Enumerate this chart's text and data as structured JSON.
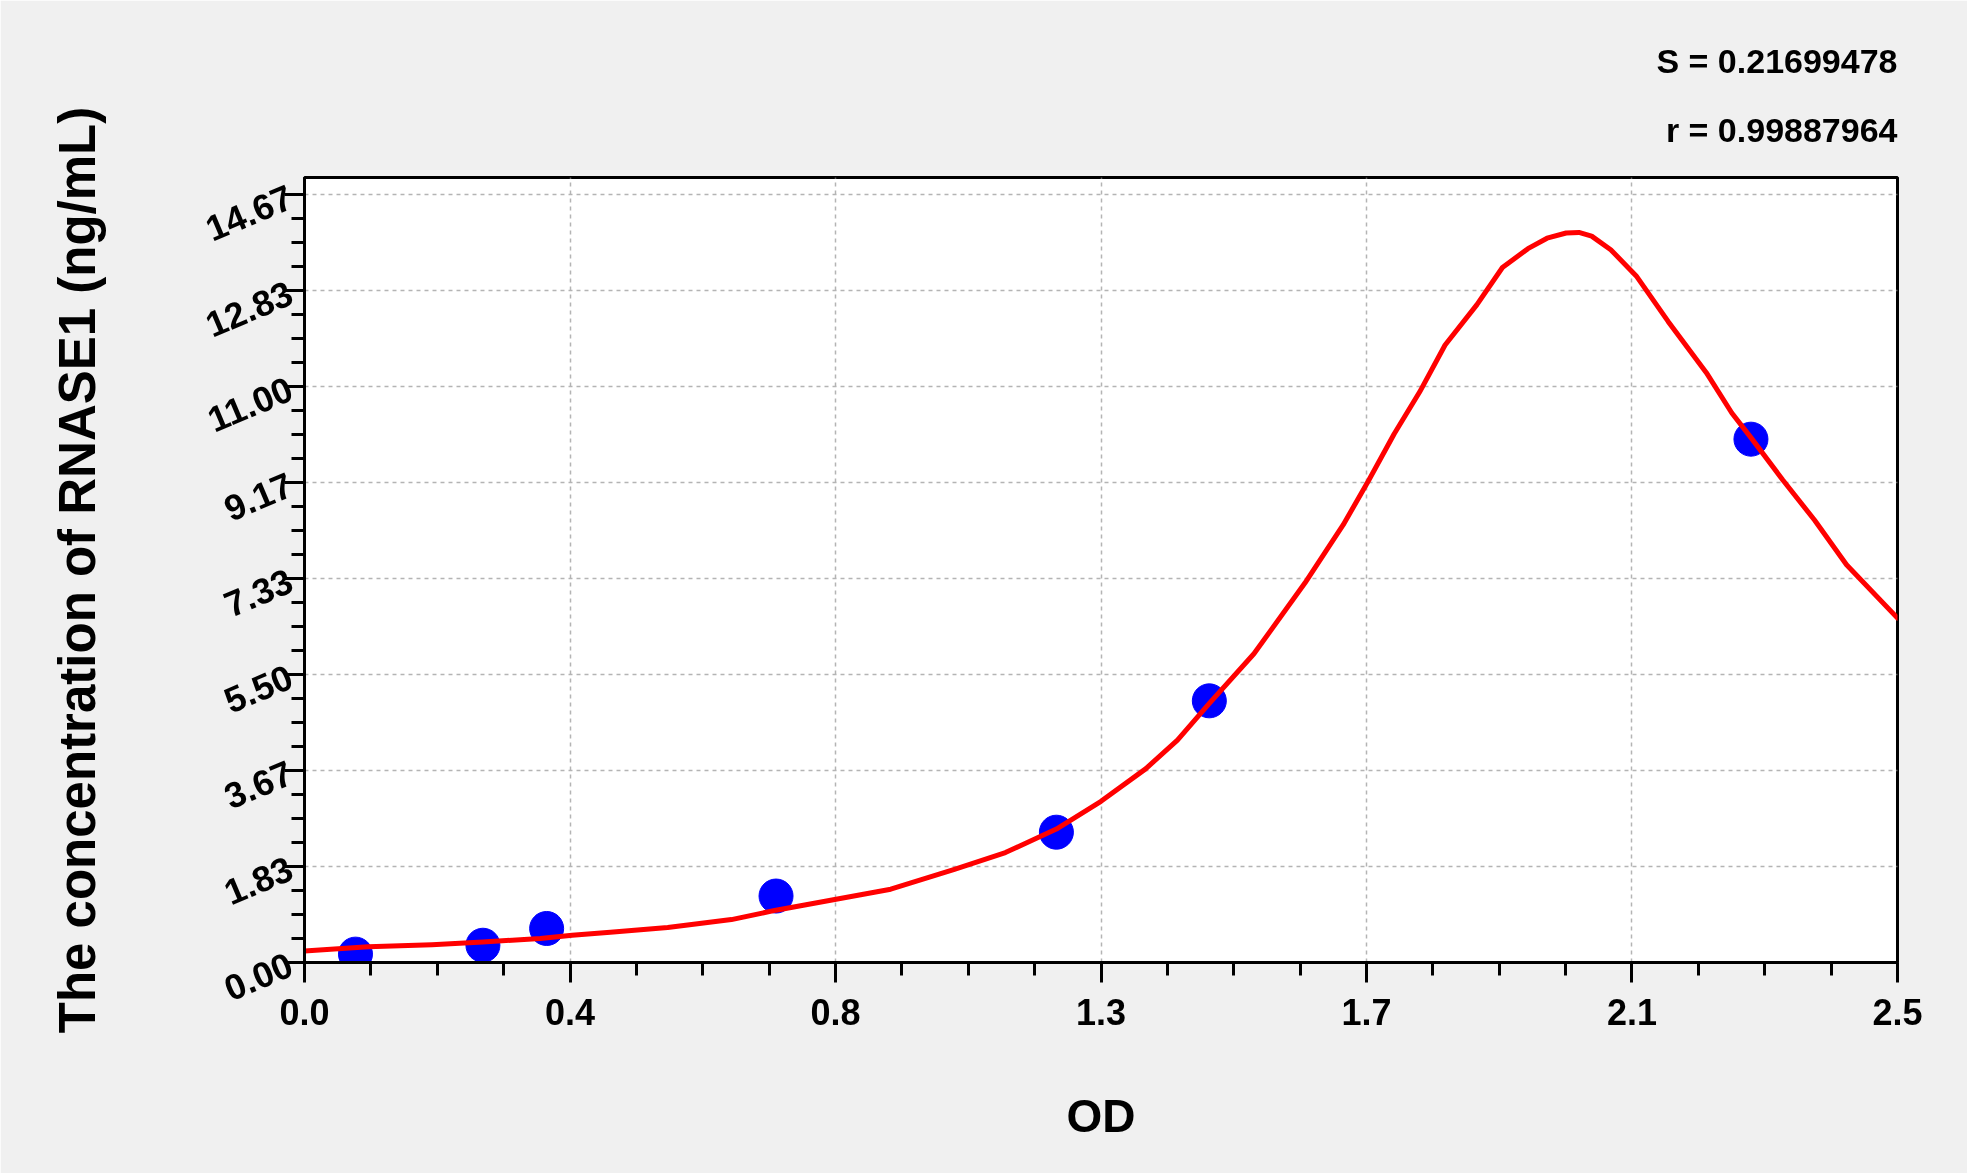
{
  "chart_data": {
    "type": "scatter",
    "xlabel": "OD",
    "ylabel": "The concentration of RNASE1 (ng/mL)",
    "annotations": [
      "S = 0.21699478",
      "r = 0.99887964"
    ],
    "xlim": [
      0,
      2.5
    ],
    "ylim": [
      0,
      15.0
    ],
    "xticks": [
      {
        "value": 0,
        "label": "0.0"
      },
      {
        "value": 0.1042,
        "label": null
      },
      {
        "value": 0.2083,
        "label": null
      },
      {
        "value": 0.3125,
        "label": null
      },
      {
        "value": 0.4167,
        "label": "0.4"
      },
      {
        "value": 0.5208,
        "label": null
      },
      {
        "value": 0.625,
        "label": null
      },
      {
        "value": 0.7292,
        "label": null
      },
      {
        "value": 0.8333,
        "label": "0.8"
      },
      {
        "value": 0.9375,
        "label": null
      },
      {
        "value": 1.0417,
        "label": null
      },
      {
        "value": 1.1458,
        "label": null
      },
      {
        "value": 1.25,
        "label": "1.3"
      },
      {
        "value": 1.3542,
        "label": null
      },
      {
        "value": 1.4583,
        "label": null
      },
      {
        "value": 1.5625,
        "label": null
      },
      {
        "value": 1.6667,
        "label": "1.7"
      },
      {
        "value": 1.7708,
        "label": null
      },
      {
        "value": 1.875,
        "label": null
      },
      {
        "value": 1.9792,
        "label": null
      },
      {
        "value": 2.0833,
        "label": "2.1"
      },
      {
        "value": 2.1875,
        "label": null
      },
      {
        "value": 2.2917,
        "label": null
      },
      {
        "value": 2.3958,
        "label": null
      },
      2.5
    ],
    "yticks": [
      {
        "value": 0,
        "label": "0.00"
      },
      {
        "value": 0.4583,
        "label": null
      },
      {
        "value": 0.9167,
        "label": null
      },
      {
        "value": 1.375,
        "label": null
      },
      {
        "value": 1.8333,
        "label": "1.83"
      },
      {
        "value": 2.2917,
        "label": null
      },
      {
        "value": 2.75,
        "label": null
      },
      {
        "value": 3.2083,
        "label": null
      },
      {
        "value": 3.6667,
        "label": "3.67"
      },
      {
        "value": 4.125,
        "label": null
      },
      {
        "value": 4.5833,
        "label": null
      },
      {
        "value": 5.0417,
        "label": null
      },
      {
        "value": 5.5,
        "label": "5.50"
      },
      {
        "value": 5.9583,
        "label": null
      },
      {
        "value": 6.4167,
        "label": null
      },
      {
        "value": 6.875,
        "label": null
      },
      {
        "value": 7.3333,
        "label": "7.33"
      },
      {
        "value": 7.7917,
        "label": null
      },
      {
        "value": 8.25,
        "label": null
      },
      {
        "value": 8.7083,
        "label": null
      },
      {
        "value": 9.1667,
        "label": "9.17"
      },
      {
        "value": 9.625,
        "label": null
      },
      {
        "value": 10.0833,
        "label": null
      },
      {
        "value": 10.5417,
        "label": null
      },
      {
        "value": 11,
        "label": "11.00"
      },
      {
        "value": 11.4583,
        "label": null
      },
      {
        "value": 11.9167,
        "label": null
      },
      {
        "value": 12.375,
        "label": null
      },
      {
        "value": 12.8333,
        "label": "12.83"
      },
      {
        "value": 13.2917,
        "label": null
      },
      {
        "value": 13.75,
        "label": null
      },
      {
        "value": 14.2083,
        "label": null
      },
      {
        "value": 14.6667,
        "label": "14.67"
      }
    ],
    "grid": true,
    "series": [
      {
        "marker": "circle",
        "color": "#0000ff",
        "x": [
          0.08,
          0.28,
          0.38,
          0.74,
          1.18,
          1.42,
          2.27
        ],
        "values": [
          0.16,
          0.33,
          0.65,
          1.27,
          2.49,
          5.0,
          10.0
        ]
      },
      {
        "type": "line",
        "line_style": "solid",
        "color": "#ff0000",
        "x": [
          0.0,
          0.1,
          0.2,
          0.28,
          0.37,
          0.42,
          0.48,
          0.57,
          0.67,
          0.74,
          0.83,
          0.92,
          1.02,
          1.1,
          1.18,
          1.25,
          1.32,
          1.37,
          1.42,
          1.49,
          1.57,
          1.63,
          1.67,
          1.71,
          1.75,
          1.79,
          1.84,
          1.88,
          1.92,
          1.95,
          1.98,
          2.0,
          2.02,
          2.05,
          2.09,
          2.14,
          2.2,
          2.24,
          2.27,
          2.32,
          2.37,
          2.42,
          2.5
        ],
        "values": [
          0.22,
          0.3,
          0.34,
          0.39,
          0.46,
          0.52,
          0.58,
          0.67,
          0.82,
          1.0,
          1.2,
          1.4,
          1.78,
          2.1,
          2.55,
          3.08,
          3.7,
          4.25,
          4.95,
          5.9,
          7.25,
          8.36,
          9.21,
          10.1,
          10.9,
          11.8,
          12.57,
          13.28,
          13.64,
          13.84,
          13.94,
          13.95,
          13.88,
          13.62,
          13.12,
          12.25,
          11.27,
          10.5,
          10.03,
          9.22,
          8.45,
          7.6,
          6.58
        ]
      }
    ]
  }
}
